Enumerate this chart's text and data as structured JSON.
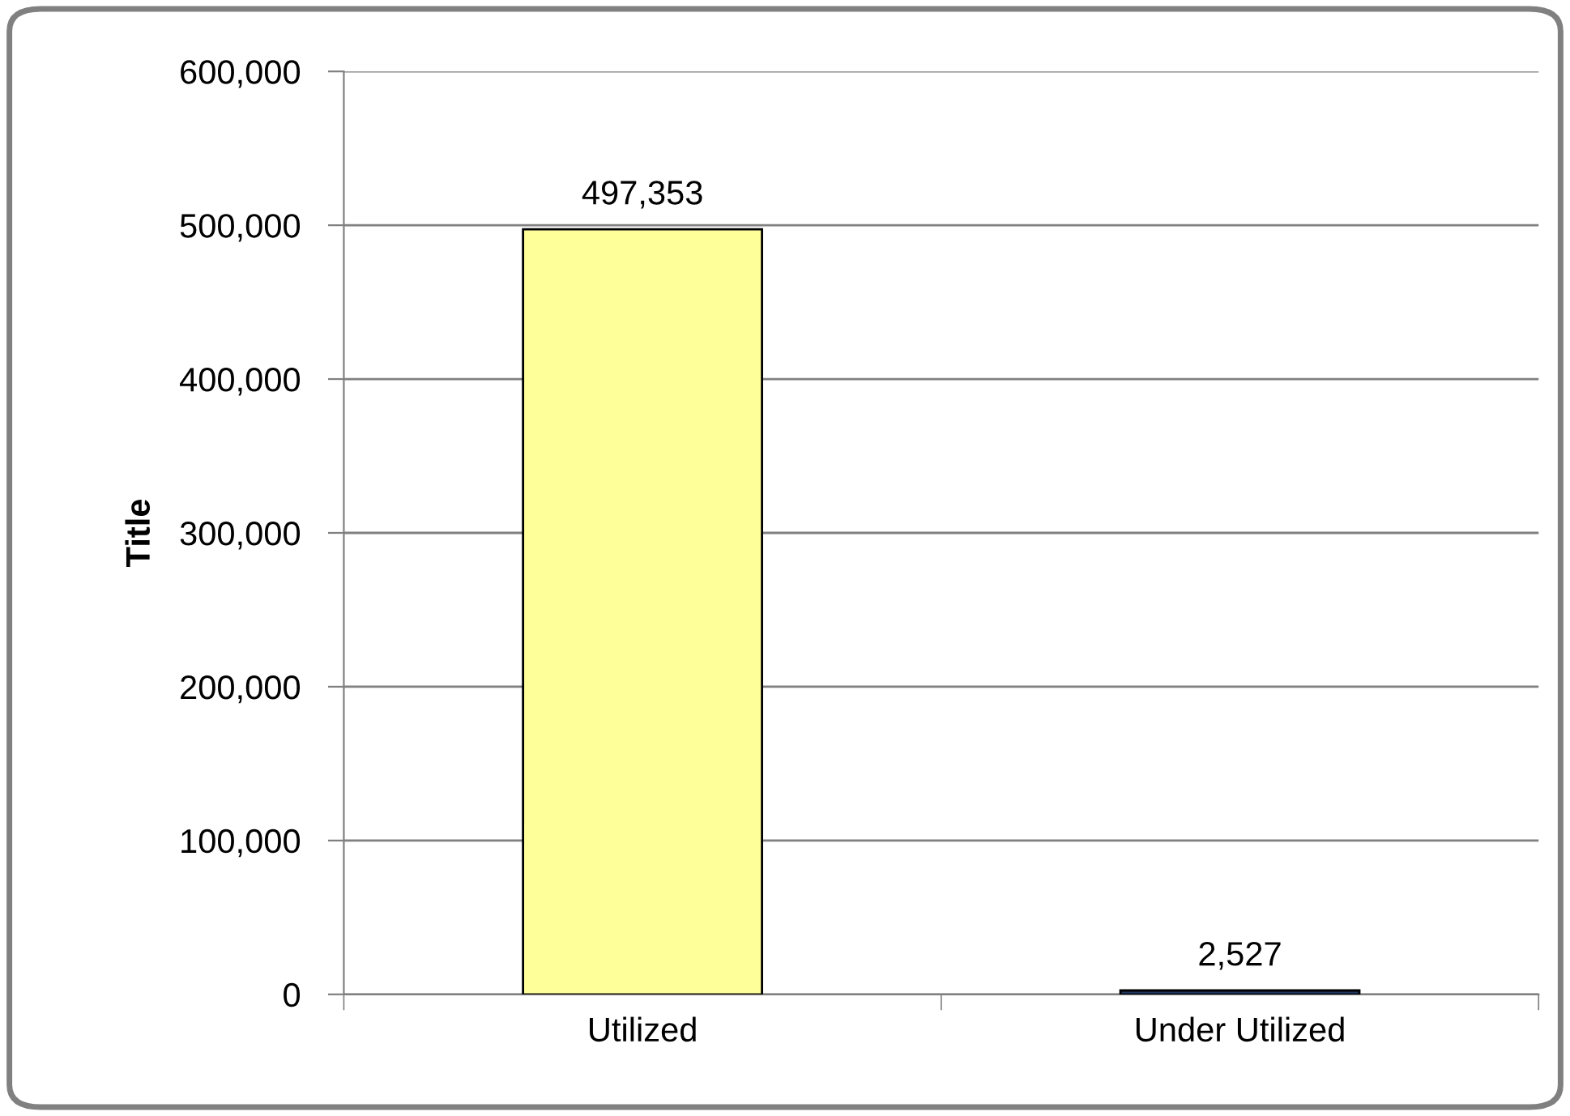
{
  "chart_data": {
    "type": "bar",
    "ylabel": "Title",
    "categories": [
      "Utilized",
      "Under Utilized"
    ],
    "values": [
      497353,
      2527
    ],
    "colors": [
      "#ffff99",
      "#1f3864"
    ],
    "value_labels": [
      "497,353",
      "2,527"
    ],
    "ylim": [
      0,
      600000
    ],
    "yticks": [
      {
        "value": 0,
        "label": "0"
      },
      {
        "value": 100000,
        "label": "100,000"
      },
      {
        "value": 200000,
        "label": "200,000"
      },
      {
        "value": 300000,
        "label": "300,000"
      },
      {
        "value": 400000,
        "label": "400,000"
      },
      {
        "value": 500000,
        "label": "500,000"
      },
      {
        "value": 600000,
        "label": "600,000"
      }
    ],
    "grid": "y",
    "legend": false
  }
}
